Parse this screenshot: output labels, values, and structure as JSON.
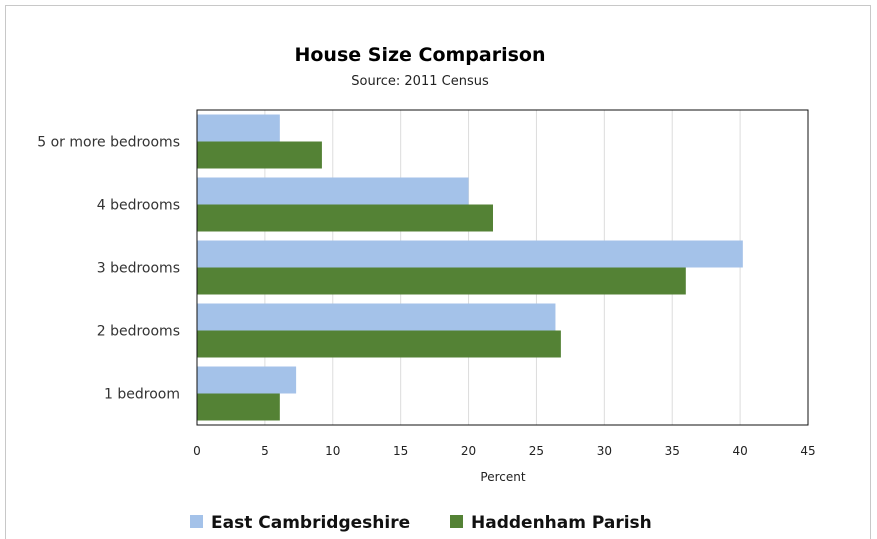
{
  "chart_data": {
    "type": "bar",
    "orientation": "horizontal",
    "title": "House Size Comparison",
    "subtitle": "Source: 2011 Census",
    "xlabel": "Percent",
    "ylabel": "",
    "xlim": [
      0,
      45
    ],
    "xticks": [
      0,
      5,
      10,
      15,
      20,
      25,
      30,
      35,
      40,
      45
    ],
    "grid": true,
    "legend_position": "bottom",
    "categories": [
      "5 or more bedrooms",
      "4 bedrooms",
      "3 bedrooms",
      "2 bedrooms",
      "1 bedroom"
    ],
    "series": [
      {
        "name": "East Cambridgeshire",
        "color": "#a4c2e9",
        "values": [
          6.1,
          20.0,
          40.2,
          26.4,
          7.3
        ]
      },
      {
        "name": "Haddenham Parish",
        "color": "#548235",
        "values": [
          9.2,
          21.8,
          36.0,
          26.8,
          6.1
        ]
      }
    ]
  }
}
